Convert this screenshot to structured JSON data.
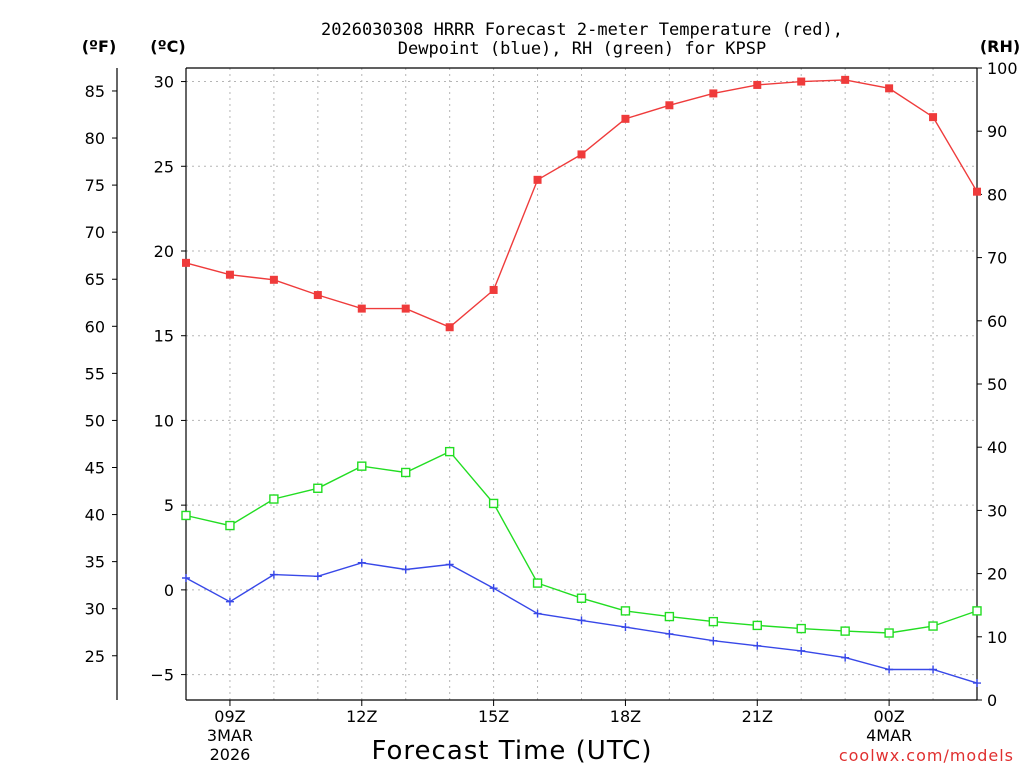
{
  "chart_data": {
    "type": "line",
    "title_line1": "2026030308 HRRR Forecast 2-meter Temperature (red),",
    "title_line2": "Dewpoint (blue), RH (green) for KPSP",
    "xlabel": "Forecast Time (UTC)",
    "credit": "coolwx.com/models",
    "unit_f": "(ºF)",
    "unit_c": "(ºC)",
    "unit_rh": "(RH)",
    "x": [
      8,
      9,
      10,
      11,
      12,
      13,
      14,
      15,
      16,
      17,
      18,
      19,
      20,
      21,
      22,
      23,
      24,
      25,
      26
    ],
    "xlim": [
      8,
      26
    ],
    "x_ticks": [
      {
        "x": 9,
        "label": "09Z",
        "sub1": "3MAR",
        "sub2": "2026"
      },
      {
        "x": 12,
        "label": "12Z",
        "sub1": "",
        "sub2": ""
      },
      {
        "x": 15,
        "label": "15Z",
        "sub1": "",
        "sub2": ""
      },
      {
        "x": 18,
        "label": "18Z",
        "sub1": "",
        "sub2": ""
      },
      {
        "x": 21,
        "label": "21Z",
        "sub1": "",
        "sub2": ""
      },
      {
        "x": 24,
        "label": "00Z",
        "sub1": "4MAR",
        "sub2": ""
      }
    ],
    "y_c_ticks": [
      {
        "v": 30,
        "label": "30"
      },
      {
        "v": 25,
        "label": "25"
      },
      {
        "v": 20,
        "label": "20"
      },
      {
        "v": 15,
        "label": "15"
      },
      {
        "v": 10,
        "label": "10"
      },
      {
        "v": 5,
        "label": "5"
      },
      {
        "v": 0,
        "label": "0"
      },
      {
        "v": -5,
        "label": "−5"
      }
    ],
    "y_f_ticks": [
      {
        "v": 85,
        "label": "85"
      },
      {
        "v": 80,
        "label": "80"
      },
      {
        "v": 75,
        "label": "75"
      },
      {
        "v": 70,
        "label": "70"
      },
      {
        "v": 65,
        "label": "65"
      },
      {
        "v": 60,
        "label": "60"
      },
      {
        "v": 55,
        "label": "55"
      },
      {
        "v": 50,
        "label": "50"
      },
      {
        "v": 45,
        "label": "45"
      },
      {
        "v": 40,
        "label": "40"
      },
      {
        "v": 35,
        "label": "35"
      },
      {
        "v": 30,
        "label": "30"
      },
      {
        "v": 25,
        "label": "25"
      }
    ],
    "y_rh_ticks": [
      {
        "v": 100,
        "label": "100"
      },
      {
        "v": 90,
        "label": "90"
      },
      {
        "v": 80,
        "label": "80"
      },
      {
        "v": 70,
        "label": "70"
      },
      {
        "v": 60,
        "label": "60"
      },
      {
        "v": 50,
        "label": "50"
      },
      {
        "v": 40,
        "label": "40"
      },
      {
        "v": 30,
        "label": "30"
      },
      {
        "v": 20,
        "label": "20"
      },
      {
        "v": 10,
        "label": "10"
      },
      {
        "v": 0,
        "label": "0"
      }
    ],
    "ylim_c": [
      -6.5,
      30.8
    ],
    "ylim_rh": [
      0,
      100
    ],
    "series": [
      {
        "name": "Temperature",
        "axis": "c",
        "marker": "filled-square",
        "color": "#ef3b3b",
        "values": [
          19.3,
          18.6,
          18.3,
          17.4,
          16.6,
          16.6,
          15.5,
          17.7,
          24.2,
          25.7,
          27.8,
          28.6,
          29.3,
          29.8,
          30.0,
          30.1,
          29.6,
          27.9,
          23.5
        ]
      },
      {
        "name": "Dewpoint",
        "axis": "c",
        "marker": "plus",
        "color": "#3848e8",
        "values": [
          0.7,
          -0.7,
          0.9,
          0.8,
          1.6,
          1.2,
          1.5,
          0.1,
          -1.4,
          -1.8,
          -2.2,
          -2.6,
          -3.0,
          -3.3,
          -3.6,
          -4.0,
          -4.7,
          -4.7,
          -5.5
        ]
      },
      {
        "name": "RH",
        "axis": "rh",
        "marker": "open-square",
        "color": "#22dd22",
        "values": [
          29.2,
          27.6,
          31.8,
          33.5,
          37.0,
          36.0,
          39.3,
          31.1,
          18.5,
          16.1,
          14.1,
          13.2,
          12.4,
          11.8,
          11.3,
          10.9,
          10.6,
          11.7,
          14.1
        ]
      }
    ]
  }
}
